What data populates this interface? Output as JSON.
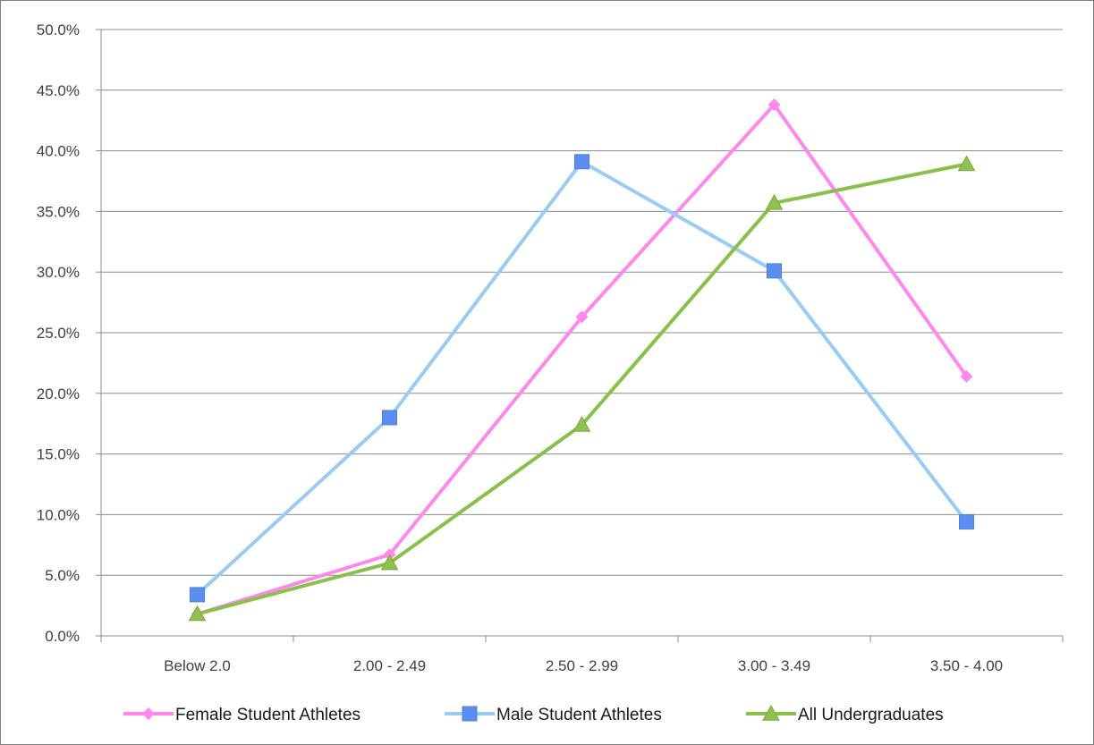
{
  "chart_data": {
    "type": "line",
    "title": "",
    "xlabel": "",
    "ylabel": "",
    "categories": [
      "Below 2.0",
      "2.00 - 2.49",
      "2.50 - 2.99",
      "3.00 - 3.49",
      "3.50 - 4.00"
    ],
    "ylim": [
      0,
      50
    ],
    "yticks": [
      0,
      5,
      10,
      15,
      20,
      25,
      30,
      35,
      40,
      45,
      50
    ],
    "ytick_labels": [
      "0.0%",
      "5.0%",
      "10.0%",
      "15.0%",
      "20.0%",
      "25.0%",
      "30.0%",
      "35.0%",
      "40.0%",
      "45.0%",
      "50.0%"
    ],
    "grid": true,
    "legend_position": "bottom",
    "series": [
      {
        "name": "Female Student Athletes",
        "values": [
          1.8,
          6.7,
          26.3,
          43.8,
          21.4
        ],
        "color": "#ff88ee",
        "marker": "diamond"
      },
      {
        "name": "Male Student Athletes",
        "values": [
          3.4,
          18.0,
          39.1,
          30.1,
          9.4
        ],
        "color": "#99ccf5",
        "marker_color": "#5b8ef0",
        "marker": "square"
      },
      {
        "name": "All Undergraduates",
        "values": [
          1.8,
          6.0,
          17.4,
          35.7,
          38.9
        ],
        "color": "#88c04a",
        "marker_color": "#92c050",
        "marker": "triangle"
      }
    ]
  }
}
